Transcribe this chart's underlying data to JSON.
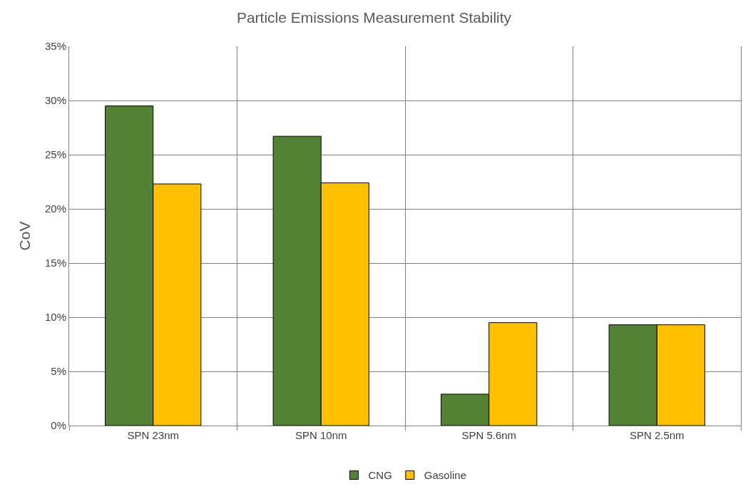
{
  "chart_data": {
    "type": "bar",
    "title": "Particle Emissions Measurement Stability",
    "ylabel": "CoV",
    "categories": [
      "SPN 23nm",
      "SPN 10nm",
      "SPN 5.6nm",
      "SPN 2.5nm"
    ],
    "series": [
      {
        "name": "CNG",
        "color": "#548235",
        "values": [
          29.5,
          26.7,
          2.9,
          9.3
        ]
      },
      {
        "name": "Gasoline",
        "color": "#ffc000",
        "values": [
          22.3,
          22.4,
          9.5,
          9.3
        ]
      }
    ],
    "ylim": [
      0,
      35
    ],
    "yticks": [
      {
        "value": 0,
        "label": "0%"
      },
      {
        "value": 5,
        "label": "5%"
      },
      {
        "value": 10,
        "label": "10%"
      },
      {
        "value": 15,
        "label": "15%"
      },
      {
        "value": 20,
        "label": "20%"
      },
      {
        "value": 25,
        "label": "25%"
      },
      {
        "value": 30,
        "label": "30%"
      },
      {
        "value": 35,
        "label": "35%"
      }
    ],
    "grid": true,
    "legend": "bottom"
  }
}
